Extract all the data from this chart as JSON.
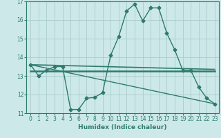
{
  "background_color": "#cce8e8",
  "grid_color": "#aacccc",
  "line_color": "#2d7a6e",
  "xlabel": "Humidex (Indice chaleur)",
  "xlim": [
    -0.5,
    23.5
  ],
  "ylim": [
    11,
    17
  ],
  "yticks": [
    11,
    12,
    13,
    14,
    15,
    16,
    17
  ],
  "xticks": [
    0,
    1,
    2,
    3,
    4,
    5,
    6,
    7,
    8,
    9,
    10,
    11,
    12,
    13,
    14,
    15,
    16,
    17,
    18,
    19,
    20,
    21,
    22,
    23
  ],
  "series": [
    {
      "x": [
        0,
        1,
        2,
        3,
        4,
        5,
        6,
        7,
        8,
        9,
        10,
        11,
        12,
        13,
        14,
        15,
        16,
        17,
        18,
        19,
        20,
        21,
        22,
        23
      ],
      "y": [
        13.6,
        13.0,
        13.3,
        13.5,
        13.5,
        11.2,
        11.2,
        11.8,
        11.85,
        12.1,
        14.1,
        15.1,
        16.5,
        16.85,
        15.95,
        16.65,
        16.65,
        15.3,
        14.4,
        13.3,
        13.3,
        12.4,
        11.8,
        11.5
      ],
      "marker": "D",
      "markersize": 2.5,
      "linewidth": 1.0
    },
    {
      "x": [
        0,
        23
      ],
      "y": [
        13.6,
        13.35
      ],
      "marker": null,
      "linewidth": 1.2
    },
    {
      "x": [
        0,
        23
      ],
      "y": [
        13.6,
        11.5
      ],
      "marker": null,
      "linewidth": 1.0
    },
    {
      "x": [
        0,
        23
      ],
      "y": [
        13.25,
        13.25
      ],
      "marker": null,
      "linewidth": 1.8
    }
  ]
}
